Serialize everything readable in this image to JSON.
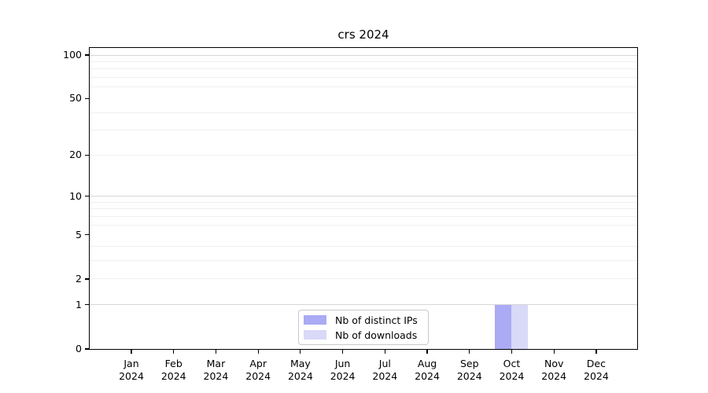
{
  "chart_data": {
    "type": "bar",
    "title": "crs 2024",
    "categories": [
      "Jan",
      "Feb",
      "Mar",
      "Apr",
      "May",
      "Jun",
      "Jul",
      "Aug",
      "Sep",
      "Oct",
      "Nov",
      "Dec"
    ],
    "x_tick_second_line": "2024",
    "series": [
      {
        "name": "Nb of distinct IPs",
        "color": "#aaaaf5",
        "values": [
          0,
          0,
          0,
          0,
          0,
          0,
          0,
          0,
          0,
          1,
          0,
          0
        ]
      },
      {
        "name": "Nb of downloads",
        "color": "#d9d9f8",
        "values": [
          0,
          0,
          0,
          0,
          0,
          0,
          0,
          0,
          0,
          1,
          0,
          0
        ]
      }
    ],
    "y_scale": "log1p",
    "ylim": [
      0,
      112
    ],
    "y_ticks": [
      0,
      1,
      2,
      5,
      10,
      20,
      50,
      100
    ],
    "y_major_gridlines": [
      1,
      10,
      100
    ],
    "y_minor_gridlines": [
      2,
      3,
      4,
      6,
      7,
      8,
      9,
      20,
      30,
      40,
      60,
      70,
      80,
      90
    ],
    "grid": "horizontal",
    "legend_position": "lower-center",
    "xlabel": "",
    "ylabel": ""
  }
}
